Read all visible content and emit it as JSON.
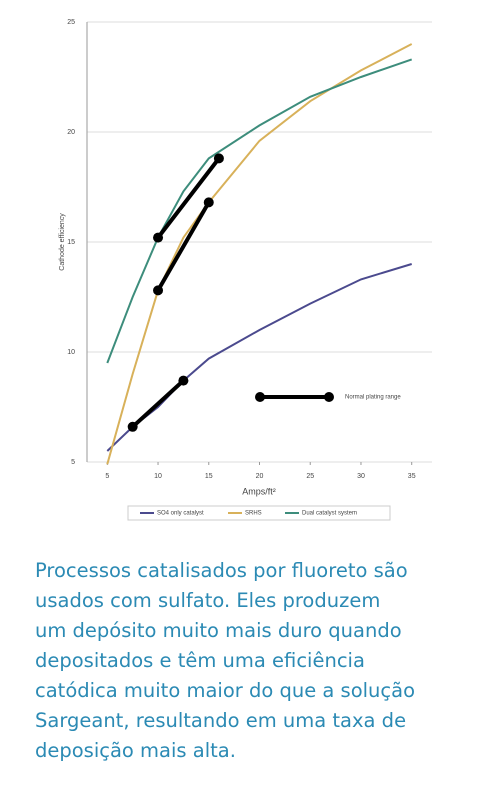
{
  "chart_data": {
    "type": "line",
    "y_label": "Cathode efficiency",
    "x_label": "Amps/ft²",
    "xlim": [
      3,
      37
    ],
    "xticks": [
      5,
      10,
      15,
      20,
      25,
      30,
      35
    ],
    "ylim": [
      5,
      25
    ],
    "yticks": [
      5,
      10,
      15,
      20,
      25
    ],
    "grid": true,
    "series": [
      {
        "name": "SO4 only catalyst",
        "color": "#4b4a8e",
        "x": [
          5,
          7.5,
          10,
          12.5,
          15,
          20,
          25,
          30,
          35
        ],
        "values": [
          5.5,
          6.6,
          7.5,
          8.7,
          9.7,
          11,
          12.2,
          13.3,
          14
        ]
      },
      {
        "name": "SRHS",
        "color": "#d8b15a",
        "x": [
          5,
          7.5,
          10,
          12.5,
          15,
          20,
          25,
          30,
          35
        ],
        "values": [
          4.9,
          9,
          12.8,
          15.2,
          16.8,
          19.6,
          21.4,
          22.8,
          24
        ]
      },
      {
        "name": "Dual catalyst system",
        "color": "#3d8d7c",
        "x": [
          5,
          7.5,
          10,
          12.5,
          15,
          20,
          25,
          30,
          35
        ],
        "values": [
          9.5,
          12.5,
          15.2,
          17.3,
          18.8,
          20.3,
          21.6,
          22.5,
          23.3
        ]
      }
    ],
    "ranges": [
      {
        "x": [
          7.5,
          12.5
        ],
        "values": [
          6.6,
          8.7
        ]
      },
      {
        "x": [
          10,
          15
        ],
        "values": [
          12.8,
          16.8
        ]
      },
      {
        "x": [
          10,
          16
        ],
        "values": [
          15.2,
          18.8
        ]
      }
    ],
    "range_label": "Normal plating range",
    "caption": [
      "Processos catalisados por fluoreto são",
      "usados com sulfato. Eles produzem",
      "um depósito muito mais duro quando",
      "depositados e têm uma eficiência",
      "catódica muito maior do que a solução",
      "Sargeant, resultando em uma taxa de",
      "deposição mais alta."
    ]
  }
}
